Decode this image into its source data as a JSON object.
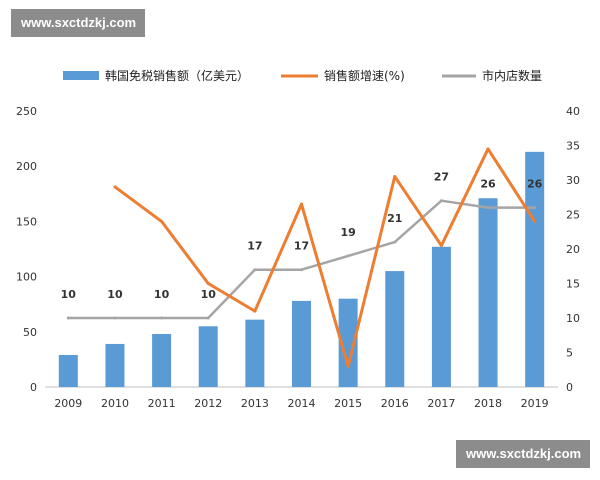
{
  "watermark": {
    "top": "www.sxctdzkj.com",
    "bottom": "www.sxctdzkj.com"
  },
  "chart_data": {
    "type": "bar",
    "categories": [
      "2009",
      "2010",
      "2011",
      "2012",
      "2013",
      "2014",
      "2015",
      "2016",
      "2017",
      "2018",
      "2019"
    ],
    "series": [
      {
        "name": "韩国免税销售额（亿美元）",
        "kind": "bar",
        "axis": "left",
        "values": [
          29,
          39,
          48,
          55,
          61,
          78,
          80,
          105,
          127,
          171,
          213
        ]
      },
      {
        "name": "销售额增速(%)",
        "kind": "line",
        "axis": "right",
        "values": [
          null,
          29,
          24,
          15,
          11,
          26.5,
          3,
          30.5,
          20.5,
          34.5,
          24
        ]
      },
      {
        "name": "市内店数量",
        "kind": "line",
        "axis": "right",
        "values": [
          10,
          10,
          10,
          10,
          17,
          17,
          19,
          21,
          27,
          26,
          26
        ],
        "labels": [
          "10",
          "10",
          "10",
          "10",
          "17",
          "17",
          "19",
          "21",
          "27",
          "26",
          "26"
        ]
      }
    ],
    "ylim_left": [
      0,
      250
    ],
    "yticks_left": [
      "0",
      "50",
      "100",
      "150",
      "200",
      "250"
    ],
    "ylim_right": [
      0,
      40
    ],
    "yticks_right": [
      "0",
      "5",
      "10",
      "15",
      "20",
      "25",
      "30",
      "35",
      "40"
    ],
    "legend_position": "top",
    "grid": false,
    "colors": {
      "bar": "#5b9bd5",
      "growth": "#ed7d31",
      "count": "#a5a5a5"
    }
  }
}
